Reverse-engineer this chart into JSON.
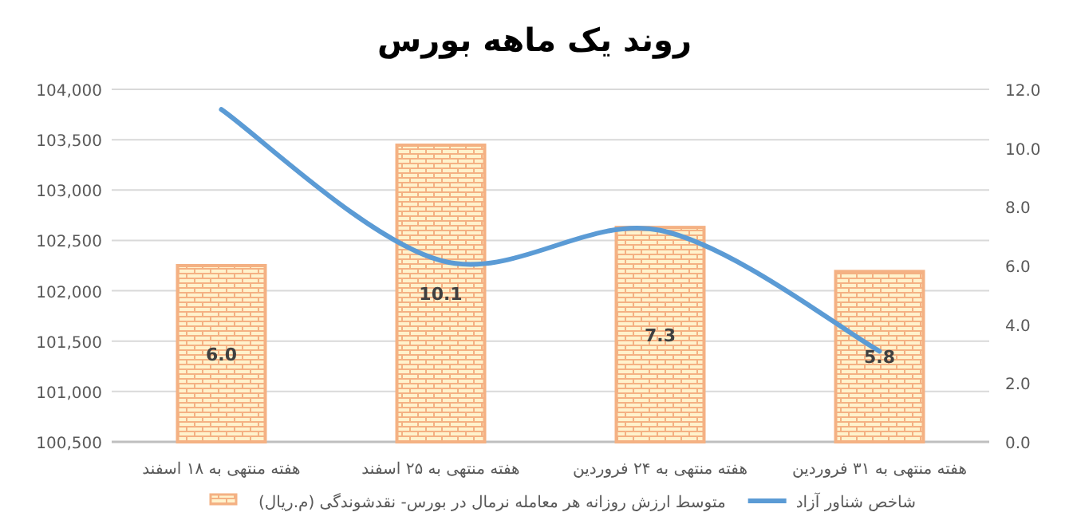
{
  "chart_data": {
    "type": "bar",
    "title": "روند یک ماهه بورس",
    "categories": [
      "هفته منتهی به ۱۸ اسفند",
      "هفته منتهی به ۲۵ اسفند",
      "هفته منتهی به ۲۴ فروردین",
      "هفته منتهی به ۳۱ فروردین"
    ],
    "series": [
      {
        "name": "متوسط ارزش روزانه هر معامله نرمال در بورس- نقدشوندگی (م.ریال)",
        "axis": "y2",
        "color": "#f4b183",
        "values": [
          6.0,
          10.1,
          7.3,
          5.8
        ],
        "value_labels": [
          "6.0",
          "10.1",
          "7.3",
          "5.8"
        ]
      },
      {
        "name": "شاخص شناور آزاد",
        "type": "line",
        "axis": "y",
        "color": "#5b9bd5",
        "values": [
          103800,
          102300,
          102600,
          101400
        ]
      }
    ],
    "ylim": [
      100500,
      104000
    ],
    "yticks": [
      {
        "value": 100500,
        "label": "100,500"
      },
      {
        "value": 101000,
        "label": "101,000"
      },
      {
        "value": 101500,
        "label": "101,500"
      },
      {
        "value": 102000,
        "label": "102,000"
      },
      {
        "value": 102500,
        "label": "102,500"
      },
      {
        "value": 103000,
        "label": "103,000"
      },
      {
        "value": 103500,
        "label": "103,500"
      },
      {
        "value": 104000,
        "label": "104,000"
      }
    ],
    "y2lim": [
      0,
      12
    ],
    "y2ticks": [
      {
        "value": 0,
        "label": "0.0"
      },
      {
        "value": 2,
        "label": "2.0"
      },
      {
        "value": 4,
        "label": "4.0"
      },
      {
        "value": 6,
        "label": "6.0"
      },
      {
        "value": 8,
        "label": "8.0"
      },
      {
        "value": 10,
        "label": "10.0"
      },
      {
        "value": 12,
        "label": "12.0"
      }
    ],
    "grid": "y",
    "legend": "bottom",
    "marker": "none",
    "line_style": "solid"
  }
}
